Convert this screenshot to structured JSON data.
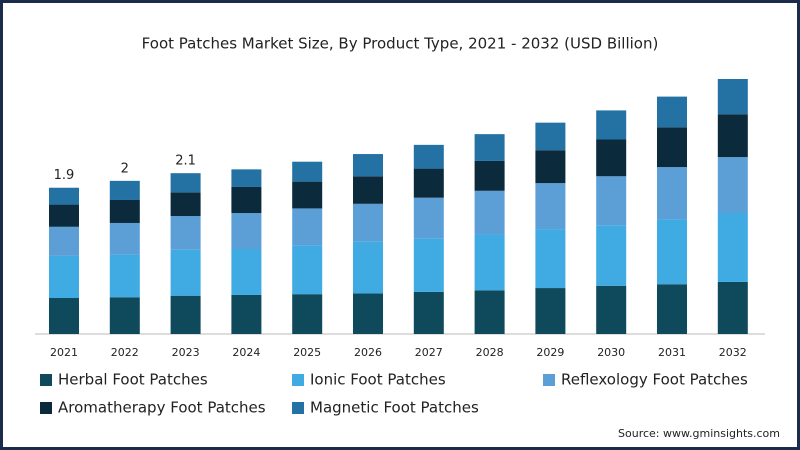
{
  "chart_data": {
    "type": "stacked-bar",
    "title": "Foot Patches Market Size, By Product Type, 2021 - 2032 (USD Billion)",
    "categories": [
      "2021",
      "2022",
      "2023",
      "2024",
      "2025",
      "2026",
      "2027",
      "2028",
      "2029",
      "2030",
      "2031",
      "2032"
    ],
    "series": [
      {
        "name": "Herbal Foot Patches",
        "color": "#0e4a5c",
        "values": [
          0.47,
          0.48,
          0.5,
          0.51,
          0.52,
          0.53,
          0.55,
          0.57,
          0.6,
          0.63,
          0.65,
          0.68
        ]
      },
      {
        "name": "Ionic Foot Patches",
        "color": "#40aae2",
        "values": [
          0.55,
          0.56,
          0.6,
          0.6,
          0.64,
          0.68,
          0.7,
          0.73,
          0.77,
          0.79,
          0.85,
          0.9
        ]
      },
      {
        "name": "Reflexology Foot Patches",
        "color": "#5b9fd6",
        "values": [
          0.38,
          0.41,
          0.44,
          0.47,
          0.48,
          0.49,
          0.53,
          0.57,
          0.6,
          0.64,
          0.68,
          0.73
        ]
      },
      {
        "name": "Aromatherapy Foot Patches",
        "color": "#0b2a3b",
        "values": [
          0.29,
          0.3,
          0.31,
          0.34,
          0.35,
          0.36,
          0.38,
          0.39,
          0.43,
          0.48,
          0.52,
          0.56
        ]
      },
      {
        "name": "Magnetic Foot Patches",
        "color": "#2472a4",
        "values": [
          0.22,
          0.25,
          0.25,
          0.23,
          0.26,
          0.29,
          0.31,
          0.35,
          0.36,
          0.38,
          0.4,
          0.46
        ]
      }
    ],
    "totals": [
      1.9,
      2,
      2.1,
      null,
      null,
      null,
      null,
      null,
      null,
      null,
      null,
      null
    ],
    "source": "Source: www.gminsights.com"
  }
}
